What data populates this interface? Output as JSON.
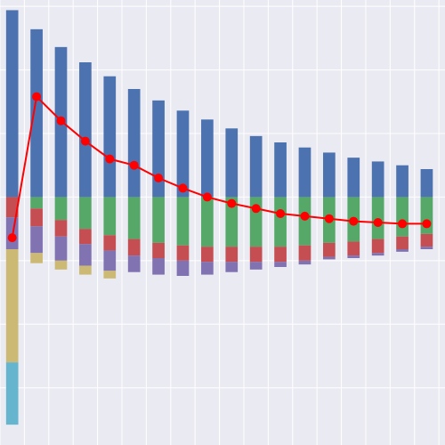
{
  "chart_data": {
    "type": "bar",
    "stacked": true,
    "grid": true,
    "legend": "none",
    "title": "",
    "xlabel": "",
    "ylabel": "",
    "ylim": [
      -1.95,
      1.55
    ],
    "x": [
      0,
      1,
      2,
      3,
      4,
      5,
      6,
      7,
      8,
      9,
      10,
      11,
      12,
      13,
      14,
      15,
      16,
      17
    ],
    "colors": {
      "blue": "#4c72b0",
      "green": "#55a868",
      "red": "#c44e52",
      "purple": "#8172b2",
      "tan": "#ccb974",
      "cyan": "#64b5cd",
      "line": "#ff0000",
      "plot_bg": "#eaeaf2",
      "grid": "#ffffff"
    },
    "series": [
      {
        "color": "blue",
        "values": [
          1.47,
          1.32,
          1.18,
          1.06,
          0.95,
          0.85,
          0.76,
          0.68,
          0.61,
          0.54,
          0.48,
          0.43,
          0.39,
          0.35,
          0.31,
          0.28,
          0.25,
          0.22
        ]
      },
      {
        "color": "green",
        "values": [
          0.0,
          -0.09,
          -0.18,
          -0.25,
          -0.3,
          -0.33,
          -0.36,
          -0.38,
          -0.39,
          -0.39,
          -0.39,
          -0.39,
          -0.38,
          -0.36,
          -0.35,
          -0.33,
          -0.31,
          -0.29
        ]
      },
      {
        "color": "red",
        "values": [
          -0.16,
          -0.14,
          -0.13,
          -0.12,
          -0.12,
          -0.13,
          -0.12,
          -0.12,
          -0.12,
          -0.12,
          -0.12,
          -0.12,
          -0.12,
          -0.11,
          -0.11,
          -0.11,
          -0.1,
          -0.1
        ]
      },
      {
        "color": "purple",
        "values": [
          -0.25,
          -0.21,
          -0.19,
          -0.17,
          -0.16,
          -0.13,
          -0.13,
          -0.12,
          -0.1,
          -0.08,
          -0.06,
          -0.04,
          -0.03,
          -0.02,
          -0.02,
          -0.02,
          -0.02,
          -0.02
        ]
      },
      {
        "color": "tan",
        "values": [
          -0.89,
          -0.08,
          -0.07,
          -0.07,
          -0.06,
          0,
          0,
          0,
          0,
          0,
          0,
          0,
          0,
          0,
          0,
          0,
          0,
          0
        ]
      },
      {
        "color": "cyan",
        "values": [
          -0.49,
          0,
          0,
          0,
          0,
          0,
          0,
          0,
          0,
          0,
          0,
          0,
          0,
          0,
          0,
          0,
          0,
          0
        ]
      }
    ],
    "line": {
      "color": "line",
      "values": [
        -0.32,
        0.79,
        0.6,
        0.44,
        0.3,
        0.25,
        0.15,
        0.07,
        0.0,
        -0.05,
        -0.09,
        -0.13,
        -0.15,
        -0.17,
        -0.19,
        -0.2,
        -0.21,
        -0.21
      ]
    }
  }
}
